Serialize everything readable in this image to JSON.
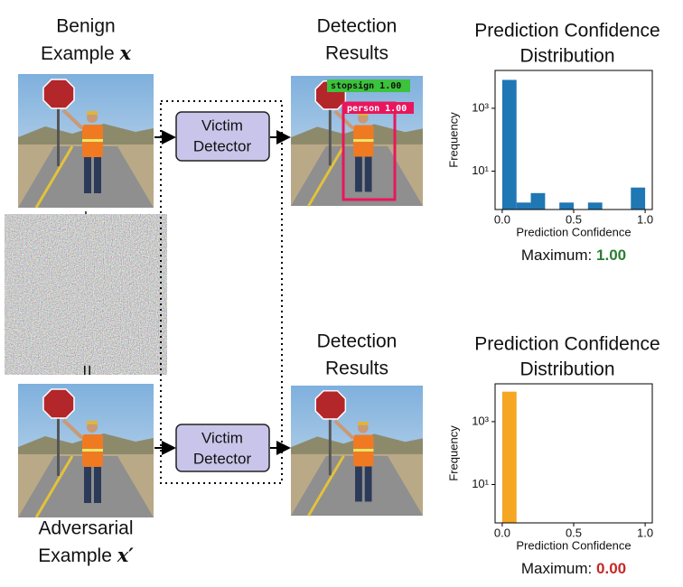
{
  "inputs": {
    "benign": {
      "lines": [
        "Benign",
        "Example"
      ],
      "symbol": "x"
    },
    "plus": "+",
    "equals": "=",
    "adversarial": {
      "lines": [
        "Adversarial",
        "Example"
      ],
      "symbol": "x′"
    }
  },
  "detector": {
    "label_lines": [
      "Victim",
      "Detector"
    ]
  },
  "detections": {
    "title_lines": [
      "Detection",
      "Results"
    ],
    "boxes": [
      {
        "label": "stopsign 1.00"
      },
      {
        "label": "person 1.00"
      }
    ]
  },
  "charts": [
    {
      "type": "histogram",
      "title_lines": [
        "Prediction Confidence",
        "Distribution"
      ],
      "xlabel": "Prediction Confidence",
      "ylabel": "Frequency",
      "bins": [
        0,
        0.1,
        0.2,
        0.3,
        0.4,
        0.5,
        0.6,
        0.7,
        0.8,
        0.9,
        1.0
      ],
      "counts": [
        8000,
        1,
        2,
        0,
        1,
        0,
        1,
        0,
        0,
        3
      ],
      "color": "#1f77b4",
      "log_y": true,
      "xlim": [
        -0.05,
        1.05
      ],
      "ylim": [
        0.6,
        16000
      ],
      "xticks": [
        {
          "value": 0,
          "label": "0.0"
        },
        {
          "value": 0.5,
          "label": "0.5"
        },
        {
          "value": 1,
          "label": "1.0"
        }
      ],
      "yticks": [
        {
          "value": 10,
          "label": "10¹"
        },
        {
          "value": 1000,
          "label": "10³"
        }
      ],
      "maximum_label": "Maximum:",
      "maximum": "1.00",
      "maximum_color": "#2e7d32"
    },
    {
      "type": "histogram",
      "title_lines": [
        "Prediction Confidence",
        "Distribution"
      ],
      "xlabel": "Prediction Confidence",
      "ylabel": "Frequency",
      "bins": [
        0,
        0.1,
        0.2,
        0.3,
        0.4,
        0.5,
        0.6,
        0.7,
        0.8,
        0.9,
        1.0
      ],
      "counts": [
        9000,
        0,
        0,
        0,
        0,
        0,
        0,
        0,
        0,
        0
      ],
      "color": "#f5a623",
      "log_y": true,
      "xlim": [
        -0.05,
        1.05
      ],
      "ylim": [
        0.6,
        16000
      ],
      "xticks": [
        {
          "value": 0,
          "label": "0.0"
        },
        {
          "value": 0.5,
          "label": "0.5"
        },
        {
          "value": 1,
          "label": "1.0"
        }
      ],
      "yticks": [
        {
          "value": 10,
          "label": "10¹"
        },
        {
          "value": 1000,
          "label": "10³"
        }
      ],
      "maximum_label": "Maximum:",
      "maximum": "0.00",
      "maximum_color": "#c62828"
    }
  ]
}
